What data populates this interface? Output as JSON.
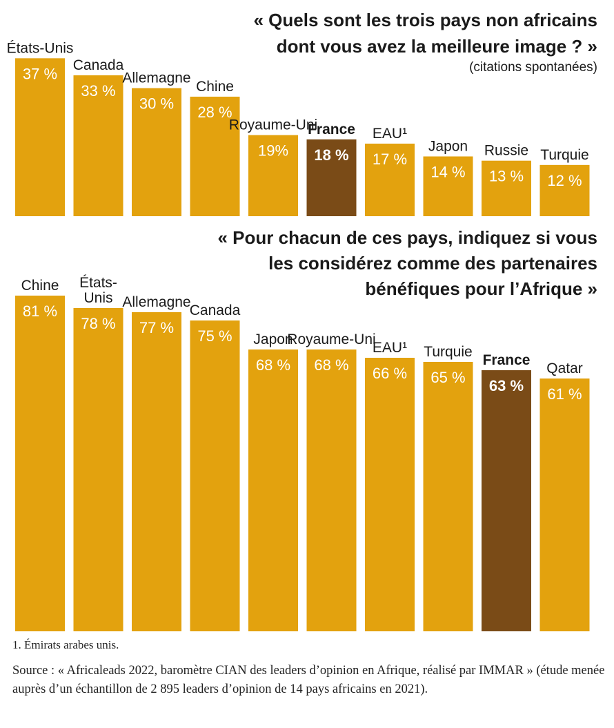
{
  "colors": {
    "bar": "#E3A20E",
    "highlight": "#7A4B17",
    "text": "#1A1A1A",
    "bar_label": "#FFFFFF"
  },
  "chart_data": [
    {
      "type": "bar",
      "title_lines": [
        "« Quels sont les trois pays non africains",
        "dont vous avez la meilleure image ? »"
      ],
      "subtitle": "(citations spontanées)",
      "categories": [
        [
          "États-Unis"
        ],
        [
          "Canada"
        ],
        [
          "Allemagne"
        ],
        [
          "Chine"
        ],
        [
          "Royaume-Uni"
        ],
        [
          "France"
        ],
        [
          "EAU¹"
        ],
        [
          "Japon"
        ],
        [
          "Russie"
        ],
        [
          "Turquie"
        ]
      ],
      "values": [
        37,
        33,
        30,
        28,
        19,
        18,
        17,
        14,
        13,
        12
      ],
      "value_labels": [
        "37 %",
        "33 %",
        "30 %",
        "28 %",
        "19%",
        "18 %",
        "17 %",
        "14 %",
        "13 %",
        "12 %"
      ],
      "highlight_index": 5,
      "unit": "%"
    },
    {
      "type": "bar",
      "title_lines": [
        "« Pour chacun de ces pays, indiquez si vous",
        "les considérez comme des partenaires",
        "bénéfiques pour l’Afrique »"
      ],
      "categories": [
        [
          "Chine"
        ],
        [
          "États-",
          "Unis"
        ],
        [
          "Allemagne"
        ],
        [
          "Canada"
        ],
        [
          "Japon"
        ],
        [
          "Royaume-Uni"
        ],
        [
          "EAU¹"
        ],
        [
          "Turquie"
        ],
        [
          "France"
        ],
        [
          "Qatar"
        ]
      ],
      "values": [
        81,
        78,
        77,
        75,
        68,
        68,
        66,
        65,
        63,
        61
      ],
      "value_labels": [
        "81 %",
        "78 %",
        "77 %",
        "75 %",
        "68 %",
        "68 %",
        "66 %",
        "65 %",
        "63 %",
        "61 %"
      ],
      "highlight_index": 8,
      "unit": "%"
    }
  ],
  "footnote": "1. Émirats arabes unis.",
  "source": "Source : « Africaleads 2022, baromètre CIAN des leaders d’opinion en Afrique, réalisé par IMMAR » (étude menée auprès d’un échantillon de 2 895 leaders d’opinion de 14 pays africains en 2021)."
}
